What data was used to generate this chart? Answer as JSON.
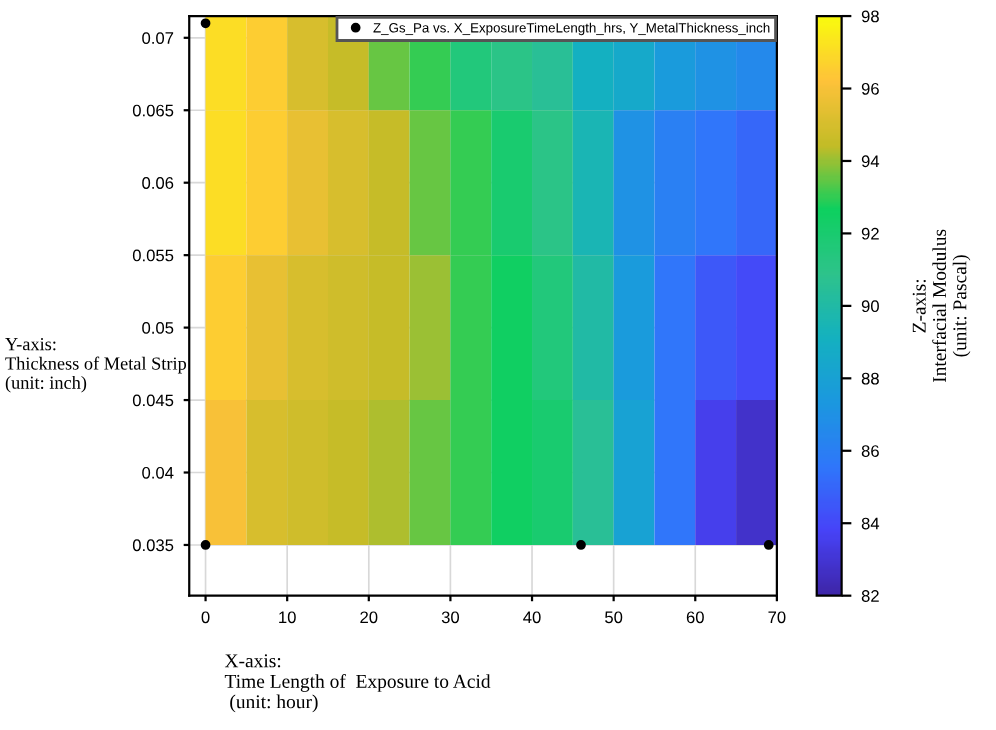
{
  "chart_data": {
    "type": "heatmap",
    "xlabel": "X-axis:\nTime Length of  Exposure to Acid\n (unit: hour)",
    "ylabel": "Y-axis:\nThickness of Metal Strip\n(unit: inch)",
    "clabel": "Z-axis:\nInterfacial Modulus\n(unit: Pascal)",
    "x": [
      2.5,
      7.5,
      12.5,
      17.5,
      22.5,
      27.5,
      32.5,
      37.5,
      42.5,
      47.5,
      52.5,
      57.5,
      62.5,
      67.5
    ],
    "y": [
      0.07,
      0.06,
      0.05,
      0.04
    ],
    "cells": [
      [
        97,
        96.5,
        95,
        94.5,
        93.5,
        93,
        91.5,
        91,
        90.5,
        89,
        88.5,
        87.5,
        87,
        86.5
      ],
      [
        97,
        96.5,
        95.5,
        95,
        94.5,
        93.5,
        93,
        92,
        91,
        89.5,
        87,
        86,
        85.5,
        85
      ],
      [
        96.5,
        95.5,
        95,
        94.8,
        94.5,
        94,
        93,
        92.5,
        91.5,
        90,
        87.5,
        85.5,
        84.5,
        84
      ],
      [
        96,
        95,
        94.8,
        94.5,
        94.2,
        93.5,
        93,
        92.5,
        92,
        90.5,
        88,
        85.5,
        83.5,
        82.8
      ]
    ],
    "clim": [
      82,
      98
    ],
    "cticks": [
      82,
      84,
      86,
      88,
      90,
      92,
      94,
      96,
      98
    ],
    "series": [
      {
        "type": "scatter",
        "name": "Z_Gs_Pa vs. X_ExposureTimeLength_hrs, Y_MetalThickness_inch",
        "color": "#000000",
        "x": [
          0,
          0,
          46,
          69
        ],
        "values": [
          0.071,
          0.035,
          0.035,
          0.035
        ]
      }
    ],
    "marker": "circle",
    "xlim": [
      -2,
      70
    ],
    "xticks": [
      0,
      10,
      20,
      30,
      40,
      50,
      60,
      70
    ],
    "ylim": [
      0.0315,
      0.0715
    ],
    "yticks": [
      0.035,
      {
        "value": 0.04,
        "label": "0.04"
      },
      0.045,
      {
        "value": 0.05,
        "label": "0.05"
      },
      0.055,
      {
        "value": 0.06,
        "label": "0.06"
      },
      0.065,
      {
        "value": 0.07,
        "label": "0.07"
      }
    ],
    "grid": true,
    "legend": "top right"
  }
}
